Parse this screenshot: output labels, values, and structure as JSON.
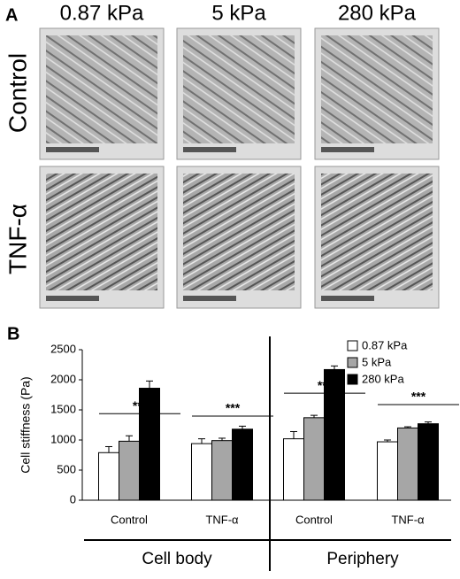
{
  "panel_a": {
    "label": "A",
    "columns": [
      "0.87 kPa",
      "5 kPa",
      "280 kPa"
    ],
    "rows": [
      "Control",
      "TNF-α"
    ]
  },
  "chart_data": {
    "type": "bar",
    "panel_label": "B",
    "y_label": "Cell stiffness (Pa)",
    "categories": [
      "Control",
      "TNF-α",
      "Control",
      "TNF-α"
    ],
    "group_labels": [
      "Cell body",
      "Periphery"
    ],
    "series": [
      {
        "name": "0.87 kPa",
        "color": "#ffffff",
        "values": [
          790,
          940,
          1020,
          970
        ],
        "errors": [
          100,
          80,
          120,
          30
        ]
      },
      {
        "name": "5 kPa",
        "color": "#a6a6a6",
        "values": [
          980,
          990,
          1370,
          1200
        ],
        "errors": [
          90,
          40,
          40,
          20
        ]
      },
      {
        "name": "280 kPa",
        "color": "#000000",
        "values": [
          1860,
          1180,
          2170,
          1270
        ],
        "errors": [
          120,
          50,
          60,
          30
        ]
      }
    ],
    "annotations": [
      "***",
      "***",
      "***",
      "***"
    ],
    "ylim": [
      0,
      2500
    ],
    "yticks": [
      0,
      500,
      1000,
      1500,
      2000,
      2500
    ],
    "legend": "top-right"
  }
}
